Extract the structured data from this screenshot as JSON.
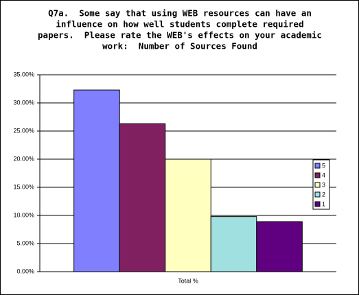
{
  "chart_data": {
    "type": "bar",
    "title": [
      "Q7a.  Some say that using WEB resources can have an",
      "influence on how well students complete required",
      "papers.  Please rate the WEB's effects on your academic",
      "work:  Number of Sources Found"
    ],
    "categories": [
      "Total %"
    ],
    "series": [
      {
        "name": "5",
        "color": "#8080ff",
        "values": [
          32.3
        ]
      },
      {
        "name": "4",
        "color": "#802060",
        "values": [
          26.3
        ]
      },
      {
        "name": "3",
        "color": "#ffffc0",
        "values": [
          20.0
        ]
      },
      {
        "name": "2",
        "color": "#a0e0e0",
        "values": [
          9.8
        ]
      },
      {
        "name": "1",
        "color": "#600080",
        "values": [
          8.9
        ]
      }
    ],
    "ylim": [
      0,
      35
    ],
    "yticks": [
      {
        "value": 0,
        "label": "0.00%"
      },
      {
        "value": 5,
        "label": "5.00%"
      },
      {
        "value": 10,
        "label": "10.00%"
      },
      {
        "value": 15,
        "label": "15.00%"
      },
      {
        "value": 20,
        "label": "20.00%"
      },
      {
        "value": 25,
        "label": "25.00%"
      },
      {
        "value": 30,
        "label": "30.00%"
      },
      {
        "value": 35,
        "label": "35.00%"
      }
    ],
    "grid": true
  }
}
